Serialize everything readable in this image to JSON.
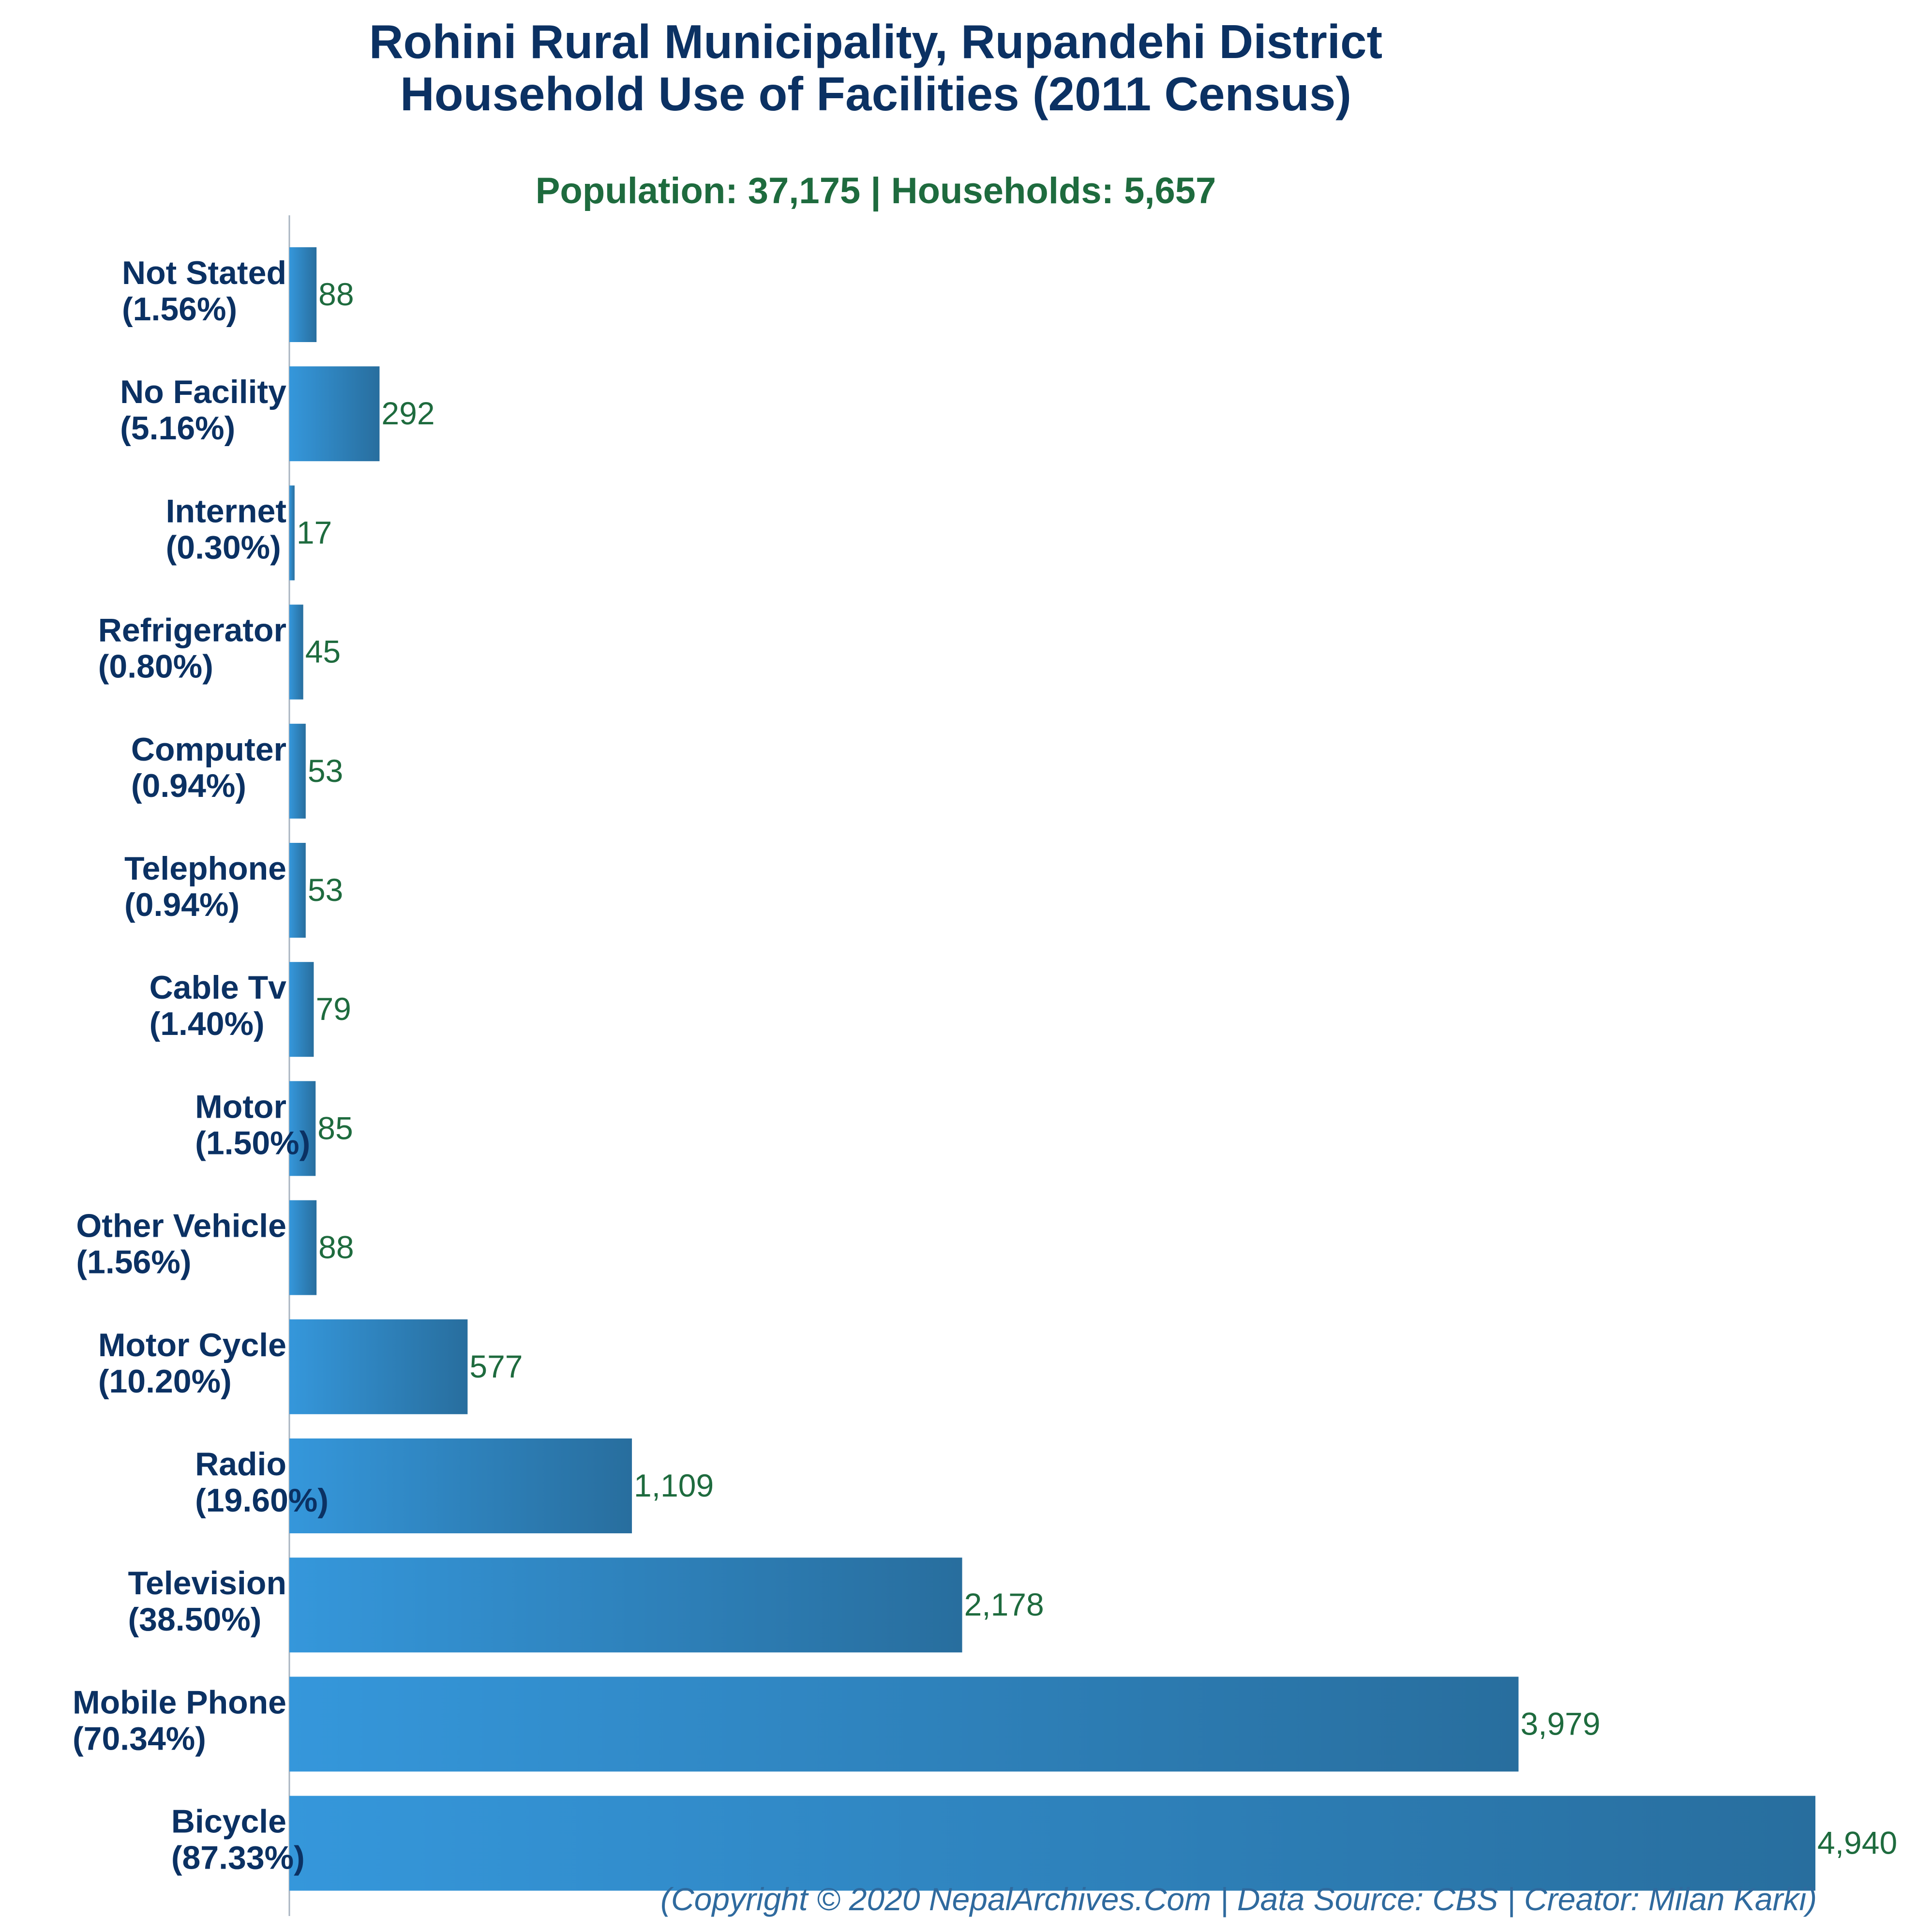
{
  "chart_data": {
    "type": "bar",
    "orientation": "horizontal",
    "title_line1": "Rohini Rural Municipality, Rupandehi District",
    "title_line2": "Household Use of Facilities (2011 Census)",
    "subtitle": "Population: 37,175 | Households: 5,657",
    "footer": "(Copyright © 2020 NepalArchives.Com | Data Source: CBS | Creator: Milan Karki)",
    "categories": [
      "Not Stated",
      "No Facility",
      "Internet",
      "Refrigerator",
      "Computer",
      "Telephone",
      "Cable Tv",
      "Motor",
      "Other Vehicle",
      "Motor Cycle",
      "Radio",
      "Television",
      "Mobile Phone",
      "Bicycle"
    ],
    "percent_labels": [
      "(1.56%)",
      "(5.16%)",
      "(0.30%)",
      "(0.80%)",
      "(0.94%)",
      "(0.94%)",
      "(1.40%)",
      "(1.50%)",
      "(1.56%)",
      "(10.20%)",
      "(19.60%)",
      "(38.50%)",
      "(70.34%)",
      "(87.33%)"
    ],
    "values": [
      88,
      292,
      17,
      45,
      53,
      53,
      79,
      85,
      88,
      577,
      1109,
      2178,
      3979,
      4940
    ],
    "value_labels": [
      "88",
      "292",
      "17",
      "45",
      "53",
      "53",
      "79",
      "85",
      "88",
      "577",
      "1,109",
      "2,178",
      "3,979",
      "4,940"
    ],
    "xlim": [
      0,
      4940
    ],
    "grid": false,
    "colors": {
      "bar_start": "#3597db",
      "bar_end": "#286e9e",
      "title": "#0b3163",
      "value_text": "#1e6b3e",
      "footer_text": "#2f6a9e"
    }
  }
}
